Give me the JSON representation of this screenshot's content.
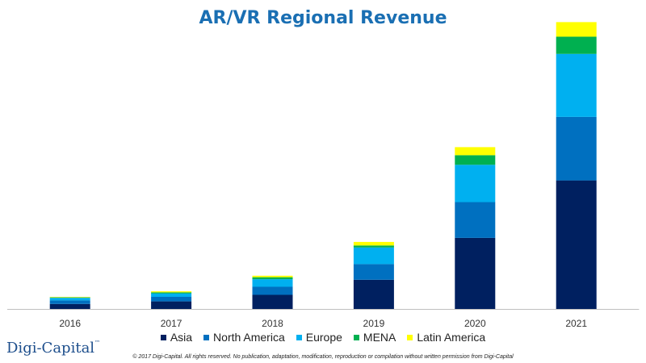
{
  "chart_data": {
    "type": "bar",
    "stacked": true,
    "title": "AR/VR Regional Revenue",
    "categories": [
      "2016",
      "2017",
      "2018",
      "2019",
      "2020",
      "2021"
    ],
    "series": [
      {
        "name": "Asia",
        "color": "#002060",
        "values": [
          1.0,
          1.5,
          2.8,
          5.8,
          14.1,
          25.5
        ]
      },
      {
        "name": "North America",
        "color": "#0070c0",
        "values": [
          0.7,
          0.9,
          1.6,
          3.1,
          7.1,
          12.6
        ]
      },
      {
        "name": "Europe",
        "color": "#00b0f0",
        "values": [
          0.5,
          0.7,
          1.5,
          3.3,
          7.4,
          12.5
        ]
      },
      {
        "name": "MENA",
        "color": "#00b050",
        "values": [
          0.1,
          0.2,
          0.4,
          0.4,
          1.9,
          3.4
        ]
      },
      {
        "name": "Latin America",
        "color": "#ffff00",
        "values": [
          0.1,
          0.2,
          0.3,
          0.7,
          1.6,
          2.9
        ]
      }
    ],
    "ylim": [
      0,
      60
    ],
    "grid": false,
    "legend": "bottom"
  },
  "footer": {
    "logo": "Digi-Capital",
    "logo_mark": "™",
    "copyright": "© 2017 Digi-Capital. All rights reserved. No publication, adaptation, modification, reproduction or compilation without written permission from Digi-Capital"
  }
}
